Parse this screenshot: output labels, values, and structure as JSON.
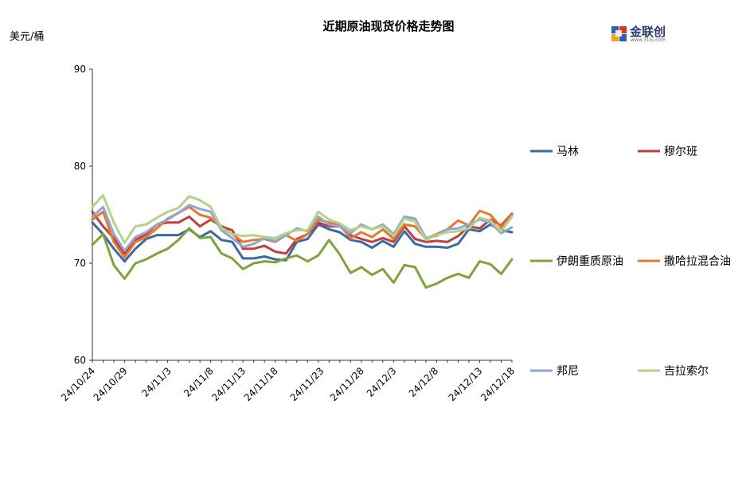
{
  "chart_data": {
    "type": "line",
    "title": "近期原油现货价格走势图",
    "ylabel": "美元/桶",
    "xlabel": "",
    "ylim": [
      60,
      90
    ],
    "yticks": [
      60,
      70,
      80,
      90
    ],
    "grid": false,
    "legend_position": "right",
    "x": [
      "24/10/24",
      "24/10/25",
      "24/10/28",
      "24/10/29",
      "24/10/30",
      "24/10/31",
      "24/11/1",
      "24/11/4",
      "24/11/5",
      "24/11/6",
      "24/11/7",
      "24/11/8",
      "24/11/11",
      "24/11/12",
      "24/11/13",
      "24/11/14",
      "24/11/15",
      "24/11/18",
      "24/11/19",
      "24/11/20",
      "24/11/21",
      "24/11/22",
      "24/11/25",
      "24/11/26",
      "24/11/27",
      "24/11/28",
      "24/11/29",
      "24/12/2",
      "24/12/3",
      "24/12/4",
      "24/12/5",
      "24/12/6",
      "24/12/9",
      "24/12/10",
      "24/12/11",
      "24/12/12",
      "24/12/13",
      "24/12/16",
      "24/12/17",
      "24/12/18"
    ],
    "xtick_labels": [
      "24/10/24",
      "24/10/29",
      "24/11/3",
      "24/11/8",
      "24/11/13",
      "24/11/18",
      "24/11/23",
      "24/11/28",
      "24/12/3",
      "24/12/8",
      "24/12/13",
      "24/12/18"
    ],
    "series": [
      {
        "name": "马林",
        "color": "#3A6AA5",
        "values": [
          74.2,
          73.0,
          71.5,
          70.2,
          71.5,
          72.5,
          72.9,
          72.9,
          72.9,
          73.5,
          72.7,
          73.3,
          72.4,
          72.2,
          70.5,
          70.5,
          70.7,
          70.4,
          70.3,
          72.2,
          72.5,
          74.0,
          73.5,
          73.2,
          72.4,
          72.2,
          71.6,
          72.3,
          71.7,
          73.3,
          72.0,
          71.7,
          71.7,
          71.6,
          72.0,
          73.5,
          73.3,
          74.0,
          73.4,
          73.2
        ]
      },
      {
        "name": "穆尔班",
        "color": "#BF3F3F",
        "values": [
          75.3,
          73.8,
          72.6,
          71.0,
          72.4,
          73.0,
          74.0,
          74.2,
          74.2,
          74.8,
          73.8,
          74.5,
          73.8,
          73.4,
          71.5,
          71.5,
          71.8,
          71.2,
          71.0,
          72.5,
          73.0,
          74.2,
          73.8,
          73.8,
          72.9,
          72.5,
          72.2,
          72.6,
          72.2,
          73.8,
          72.5,
          72.2,
          72.3,
          72.2,
          72.8,
          73.8,
          73.6,
          74.5,
          73.9,
          75.1
        ]
      },
      {
        "name": "伊朗重质原油",
        "color": "#7FA33B",
        "values": [
          71.9,
          73.0,
          69.8,
          68.4,
          70.0,
          70.4,
          71.0,
          71.5,
          72.4,
          73.6,
          72.6,
          72.7,
          71.0,
          70.5,
          69.4,
          70.0,
          70.2,
          70.1,
          70.5,
          70.8,
          70.2,
          70.8,
          72.4,
          70.9,
          69.0,
          69.6,
          68.8,
          69.4,
          68.0,
          69.8,
          69.6,
          67.5,
          67.9,
          68.5,
          68.9,
          68.5,
          70.2,
          69.9,
          68.9,
          70.4
        ]
      },
      {
        "name": "撒哈拉混合油",
        "color": "#E8782A",
        "values": [
          74.5,
          75.3,
          72.2,
          70.6,
          72.2,
          72.7,
          73.6,
          74.6,
          75.2,
          75.8,
          75.0,
          74.7,
          73.7,
          73.0,
          72.2,
          72.4,
          72.5,
          72.2,
          72.9,
          72.3,
          73.0,
          74.5,
          74.2,
          73.9,
          72.6,
          73.2,
          72.7,
          73.5,
          72.5,
          74.0,
          73.8,
          72.5,
          73.0,
          73.5,
          74.4,
          73.9,
          75.4,
          75.0,
          73.7,
          75.0
        ]
      },
      {
        "name": "邦尼",
        "color": "#8FA5D3",
        "values": [
          74.8,
          75.8,
          73.0,
          71.3,
          72.7,
          73.2,
          74.0,
          74.5,
          75.2,
          76.0,
          75.6,
          75.3,
          73.4,
          72.6,
          71.7,
          72.0,
          72.6,
          72.3,
          72.9,
          73.6,
          73.3,
          74.8,
          74.0,
          73.8,
          73.1,
          74.0,
          73.5,
          74.0,
          73.0,
          74.8,
          74.6,
          72.6,
          72.8,
          73.5,
          73.6,
          74.0,
          74.5,
          74.2,
          73.1,
          73.7
        ]
      },
      {
        "name": "吉拉索尔",
        "color": "#B5D18A",
        "values": [
          75.8,
          77.0,
          74.2,
          72.1,
          73.8,
          74.0,
          74.7,
          75.3,
          75.7,
          76.9,
          76.5,
          75.8,
          73.6,
          73.0,
          72.8,
          72.9,
          72.7,
          72.6,
          73.1,
          73.4,
          73.4,
          75.3,
          74.5,
          74.1,
          73.4,
          73.8,
          73.5,
          73.8,
          72.8,
          74.6,
          74.3,
          72.4,
          72.9,
          73.2,
          73.3,
          73.6,
          74.7,
          74.4,
          73.3,
          74.8
        ]
      }
    ]
  },
  "logo": {
    "text": "金联创",
    "subtext": "www.315i.com"
  }
}
